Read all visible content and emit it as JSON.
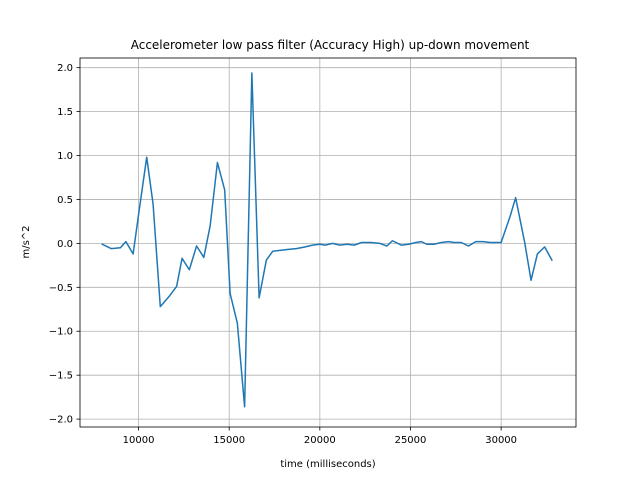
{
  "chart_data": {
    "type": "line",
    "title": "Accelerometer low pass filter (Accuracy High) up-down movement",
    "xlabel": "time (milliseconds)",
    "ylabel": "m/s^2",
    "xlim": [
      6770,
      34130
    ],
    "ylim": [
      -2.09,
      2.11
    ],
    "grid": true,
    "line_color": "#1f77b4",
    "x_ticks": [
      10000,
      15000,
      20000,
      25000,
      30000
    ],
    "x_tick_labels": [
      "10000",
      "15000",
      "20000",
      "25000",
      "30000"
    ],
    "y_ticks": [
      2.0,
      1.5,
      1.0,
      0.5,
      0.0,
      -0.5,
      -1.0,
      -1.5,
      -2.0
    ],
    "y_tick_labels": [
      "2.0",
      "1.5",
      "1.0",
      "0.5",
      "0.0",
      "−0.5",
      "−1.0",
      "−1.5",
      "−2.0"
    ],
    "series": [
      {
        "points": [
          [
            8000,
            -0.01
          ],
          [
            8500,
            -0.06
          ],
          [
            9000,
            -0.05
          ],
          [
            9300,
            0.02
          ],
          [
            9700,
            -0.12
          ],
          [
            10050,
            0.4
          ],
          [
            10450,
            0.98
          ],
          [
            10800,
            0.45
          ],
          [
            11200,
            -0.72
          ],
          [
            11700,
            -0.6
          ],
          [
            12100,
            -0.49
          ],
          [
            12400,
            -0.17
          ],
          [
            12800,
            -0.3
          ],
          [
            13200,
            -0.03
          ],
          [
            13600,
            -0.16
          ],
          [
            13950,
            0.2
          ],
          [
            14350,
            0.92
          ],
          [
            14750,
            0.61
          ],
          [
            15050,
            -0.57
          ],
          [
            15450,
            -0.91
          ],
          [
            15850,
            -1.86
          ],
          [
            16250,
            1.94
          ],
          [
            16650,
            -0.62
          ],
          [
            17050,
            -0.19
          ],
          [
            17400,
            -0.09
          ],
          [
            17800,
            -0.08
          ],
          [
            18200,
            -0.07
          ],
          [
            18700,
            -0.06
          ],
          [
            19200,
            -0.04
          ],
          [
            19600,
            -0.02
          ],
          [
            20000,
            -0.01
          ],
          [
            20300,
            -0.02
          ],
          [
            20700,
            0.0
          ],
          [
            21100,
            -0.02
          ],
          [
            21500,
            -0.01
          ],
          [
            21900,
            -0.02
          ],
          [
            22300,
            0.01
          ],
          [
            22800,
            0.01
          ],
          [
            23300,
            0.0
          ],
          [
            23700,
            -0.03
          ],
          [
            24000,
            0.03
          ],
          [
            24500,
            -0.02
          ],
          [
            24900,
            -0.01
          ],
          [
            25300,
            0.01
          ],
          [
            25600,
            0.02
          ],
          [
            25900,
            -0.01
          ],
          [
            26300,
            -0.01
          ],
          [
            26700,
            0.01
          ],
          [
            27100,
            0.02
          ],
          [
            27400,
            0.01
          ],
          [
            27800,
            0.01
          ],
          [
            28200,
            -0.03
          ],
          [
            28600,
            0.02
          ],
          [
            29000,
            0.02
          ],
          [
            29400,
            0.01
          ],
          [
            29700,
            0.01
          ],
          [
            30000,
            0.01
          ],
          [
            30500,
            0.31
          ],
          [
            30800,
            0.52
          ],
          [
            31300,
            0.01
          ],
          [
            31650,
            -0.42
          ],
          [
            32000,
            -0.12
          ],
          [
            32400,
            -0.04
          ],
          [
            32800,
            -0.19
          ]
        ]
      }
    ]
  }
}
